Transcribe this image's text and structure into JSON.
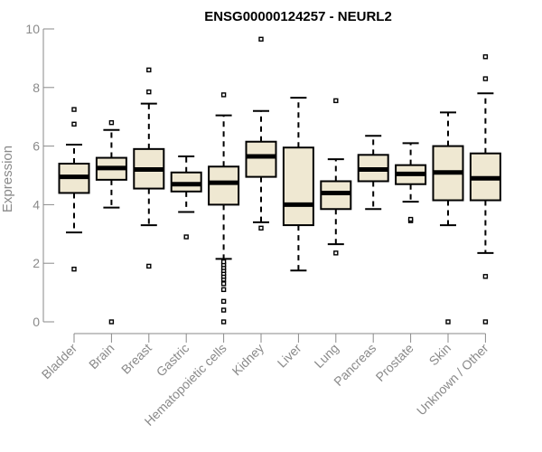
{
  "chart_data": {
    "type": "boxplot",
    "title": "ENSG00000124257 - NEURL2",
    "xlabel": "",
    "ylabel": "Expression",
    "ylim": [
      0,
      10
    ],
    "yticks": [
      0,
      2,
      4,
      6,
      8,
      10
    ],
    "colors": {
      "box_fill": "#efe8d2",
      "stroke": "#000000",
      "axis": "#8a8a8a"
    },
    "categories": [
      "Bladder",
      "Brain",
      "Breast",
      "Gastric",
      "Hematopoietic cells",
      "Kidney",
      "Liver",
      "Lung",
      "Pancreas",
      "Prostate",
      "Skin",
      "Unknown / Other"
    ],
    "boxes": [
      {
        "whisker_low": 3.05,
        "q1": 4.4,
        "median": 4.95,
        "q3": 5.4,
        "whisker_high": 6.05,
        "outliers": [
          1.8,
          6.75,
          7.25
        ]
      },
      {
        "whisker_low": 3.9,
        "q1": 4.85,
        "median": 5.25,
        "q3": 5.6,
        "whisker_high": 6.55,
        "outliers": [
          0.0,
          6.8
        ]
      },
      {
        "whisker_low": 3.3,
        "q1": 4.55,
        "median": 5.2,
        "q3": 5.9,
        "whisker_high": 7.45,
        "outliers": [
          1.9,
          7.85,
          8.6
        ]
      },
      {
        "whisker_low": 3.75,
        "q1": 4.45,
        "median": 4.7,
        "q3": 5.1,
        "whisker_high": 5.65,
        "outliers": [
          2.9
        ]
      },
      {
        "whisker_low": 2.15,
        "q1": 4.0,
        "median": 4.75,
        "q3": 5.3,
        "whisker_high": 7.05,
        "outliers": [
          0.0,
          0.4,
          0.7,
          1.1,
          1.3,
          1.45,
          1.55,
          1.65,
          1.75,
          1.85,
          1.95,
          2.05,
          7.75
        ]
      },
      {
        "whisker_low": 3.4,
        "q1": 4.95,
        "median": 5.65,
        "q3": 6.15,
        "whisker_high": 7.2,
        "outliers": [
          3.2,
          9.65
        ]
      },
      {
        "whisker_low": 1.75,
        "q1": 3.3,
        "median": 4.0,
        "q3": 5.95,
        "whisker_high": 7.65,
        "outliers": []
      },
      {
        "whisker_low": 2.65,
        "q1": 3.85,
        "median": 4.4,
        "q3": 4.8,
        "whisker_high": 5.55,
        "outliers": [
          2.35,
          7.55
        ]
      },
      {
        "whisker_low": 3.85,
        "q1": 4.8,
        "median": 5.2,
        "q3": 5.7,
        "whisker_high": 6.35,
        "outliers": []
      },
      {
        "whisker_low": 4.1,
        "q1": 4.7,
        "median": 5.05,
        "q3": 5.35,
        "whisker_high": 6.1,
        "outliers": [
          3.45,
          3.5
        ]
      },
      {
        "whisker_low": 3.3,
        "q1": 4.15,
        "median": 5.1,
        "q3": 6.0,
        "whisker_high": 7.15,
        "outliers": [
          0.0
        ]
      },
      {
        "whisker_low": 2.35,
        "q1": 4.15,
        "median": 4.9,
        "q3": 5.75,
        "whisker_high": 7.8,
        "outliers": [
          0.0,
          1.55,
          8.3,
          9.05
        ]
      }
    ]
  }
}
